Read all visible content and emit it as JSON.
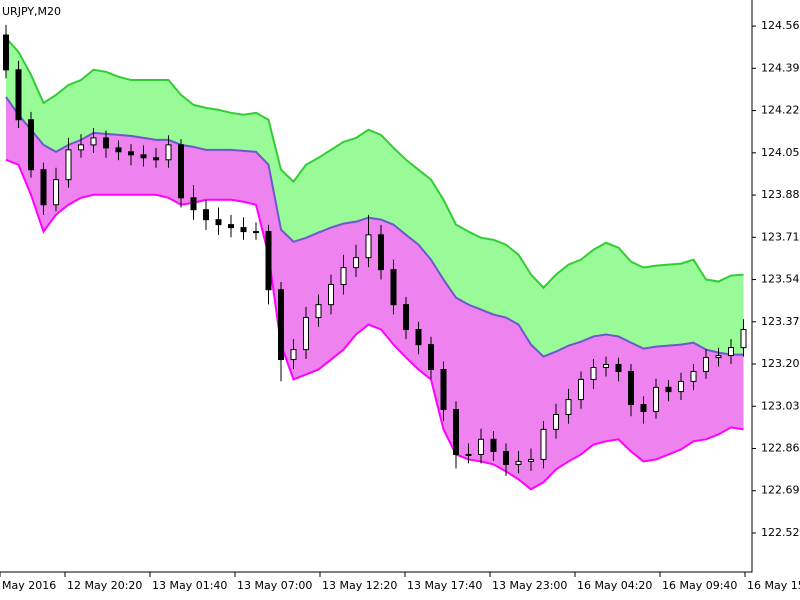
{
  "chart_data": {
    "type": "candlestick",
    "title": "URJPY,M20",
    "xlim": [
      -0.48,
      59.68
    ],
    "xticks": [
      {
        "value": -0.48,
        "label": "May 2016"
      },
      {
        "value": 4.72,
        "label": "12 May 20:20"
      },
      {
        "value": 11.52,
        "label": "13 May 01:40"
      },
      {
        "value": 18.32,
        "label": "13 May 07:00"
      },
      {
        "value": 25.12,
        "label": "13 May 12:20"
      },
      {
        "value": 31.92,
        "label": "13 May 17:40"
      },
      {
        "value": 38.72,
        "label": "13 May 23:00"
      },
      {
        "value": 45.52,
        "label": "16 May 04:20"
      },
      {
        "value": 52.32,
        "label": "16 May 09:40"
      },
      {
        "value": 59.12,
        "label": "16 May 15"
      }
    ],
    "ylim": [
      122.363,
      124.665
    ],
    "yticks": [
      {
        "value": 124.56,
        "label": "124.560"
      },
      {
        "value": 124.39,
        "label": "124.390"
      },
      {
        "value": 124.22,
        "label": "124.220"
      },
      {
        "value": 124.05,
        "label": "124.050"
      },
      {
        "value": 123.88,
        "label": "123.880"
      },
      {
        "value": 123.71,
        "label": "123.710"
      },
      {
        "value": 123.54,
        "label": "123.540"
      },
      {
        "value": 123.37,
        "label": "123.370"
      },
      {
        "value": 123.2,
        "label": "123.200"
      },
      {
        "value": 123.03,
        "label": "123.030"
      },
      {
        "value": 122.86,
        "label": "122.860"
      },
      {
        "value": 122.69,
        "label": "122.690"
      },
      {
        "value": 122.52,
        "label": "122.520"
      }
    ],
    "up_color": "#ffffff",
    "down_color": "#000000",
    "open": [
      124.524,
      124.384,
      124.183,
      123.982,
      123.841,
      123.942,
      124.062,
      124.082,
      124.11,
      124.07,
      124.054,
      124.042,
      124.03,
      124.022,
      124.082,
      123.869,
      123.821,
      123.781,
      123.761,
      123.749,
      123.733,
      123.733,
      123.499,
      123.218,
      123.258,
      123.387,
      123.439,
      123.52,
      123.588,
      123.628,
      123.72,
      123.58,
      123.439,
      123.339,
      123.278,
      123.178,
      123.017,
      122.836,
      122.836,
      122.897,
      122.848,
      122.796,
      122.808,
      122.816,
      122.937,
      122.997,
      123.057,
      123.138,
      123.186,
      123.198,
      123.17,
      123.037,
      123.009,
      123.106,
      123.089,
      123.13,
      123.17,
      123.226,
      123.234,
      123.266
    ],
    "high": [
      124.565,
      124.42,
      124.215,
      124.01,
      123.99,
      124.11,
      124.125,
      124.15,
      124.14,
      124.1,
      124.085,
      124.08,
      124.07,
      124.12,
      124.105,
      123.92,
      123.86,
      123.83,
      123.8,
      123.79,
      123.77,
      123.76,
      123.53,
      123.3,
      123.43,
      123.48,
      123.56,
      123.64,
      123.68,
      123.8,
      123.76,
      123.62,
      123.47,
      123.37,
      123.31,
      123.21,
      123.05,
      122.88,
      122.94,
      122.93,
      122.88,
      122.85,
      122.86,
      122.97,
      123.04,
      123.1,
      123.17,
      123.22,
      123.23,
      123.225,
      123.2,
      123.07,
      123.14,
      123.135,
      123.165,
      123.2,
      123.26,
      123.265,
      123.3,
      123.38
    ],
    "low": [
      124.35,
      124.15,
      123.95,
      123.8,
      123.815,
      123.91,
      124.03,
      124.05,
      124.03,
      124.02,
      124.0,
      123.995,
      123.99,
      123.99,
      123.83,
      123.78,
      123.74,
      123.72,
      123.71,
      123.7,
      123.7,
      123.44,
      123.13,
      123.18,
      123.22,
      123.35,
      123.4,
      123.48,
      123.55,
      123.59,
      123.54,
      123.4,
      123.3,
      123.24,
      123.14,
      122.97,
      122.78,
      122.8,
      122.8,
      122.81,
      122.75,
      122.76,
      122.77,
      122.78,
      122.9,
      122.96,
      123.02,
      123.1,
      123.15,
      123.13,
      122.99,
      122.96,
      122.98,
      123.05,
      123.055,
      123.095,
      123.14,
      123.19,
      123.2,
      123.23
    ],
    "close": [
      124.384,
      124.183,
      123.982,
      123.841,
      123.942,
      124.062,
      124.082,
      124.11,
      124.07,
      124.054,
      124.042,
      124.03,
      124.022,
      124.082,
      123.869,
      123.821,
      123.781,
      123.761,
      123.749,
      123.733,
      123.733,
      123.499,
      123.218,
      123.258,
      123.387,
      123.439,
      123.52,
      123.588,
      123.628,
      123.72,
      123.58,
      123.439,
      123.339,
      123.278,
      123.178,
      123.017,
      122.836,
      122.836,
      122.897,
      122.848,
      122.796,
      122.808,
      122.816,
      122.937,
      122.997,
      123.057,
      123.138,
      123.186,
      123.198,
      123.17,
      123.037,
      123.009,
      123.106,
      123.089,
      123.13,
      123.17,
      123.226,
      123.234,
      123.266,
      123.339
    ],
    "fills": [
      "#98fb98",
      "#ee82ee"
    ],
    "series": [
      {
        "color": "#32cd32",
        "values": [
          124.512,
          124.456,
          124.364,
          124.251,
          124.283,
          124.323,
          124.343,
          124.384,
          124.376,
          124.356,
          124.343,
          124.343,
          124.343,
          124.343,
          124.283,
          124.243,
          124.231,
          124.223,
          124.211,
          124.203,
          124.211,
          124.183,
          123.982,
          123.934,
          124.002,
          124.03,
          124.062,
          124.094,
          124.11,
          124.143,
          124.122,
          124.07,
          124.022,
          123.982,
          123.942,
          123.861,
          123.761,
          123.733,
          123.708,
          123.7,
          123.68,
          123.64,
          123.56,
          123.507,
          123.56,
          123.6,
          123.62,
          123.66,
          123.688,
          123.668,
          123.612,
          123.588,
          123.596,
          123.6,
          123.604,
          123.62,
          123.54,
          123.532,
          123.556,
          123.56
        ]
      },
      {
        "color": "#6a5acd",
        "values": [
          124.275,
          124.203,
          124.143,
          124.082,
          124.054,
          124.082,
          124.102,
          124.13,
          124.126,
          124.122,
          124.118,
          124.11,
          124.102,
          124.102,
          124.082,
          124.074,
          124.062,
          124.062,
          124.062,
          124.058,
          124.054,
          124.002,
          123.741,
          123.692,
          123.708,
          123.729,
          123.749,
          123.765,
          123.773,
          123.789,
          123.781,
          123.761,
          123.72,
          123.68,
          123.62,
          123.54,
          123.467,
          123.439,
          123.419,
          123.399,
          123.387,
          123.359,
          123.278,
          123.23,
          123.25,
          123.274,
          123.29,
          123.311,
          123.319,
          123.311,
          123.286,
          123.262,
          123.27,
          123.274,
          123.278,
          123.286,
          123.258,
          123.246,
          123.238,
          123.238
        ]
      },
      {
        "color": "#ff00ff",
        "values": [
          124.022,
          124.002,
          123.881,
          123.733,
          123.801,
          123.841,
          123.869,
          123.881,
          123.881,
          123.881,
          123.881,
          123.881,
          123.881,
          123.869,
          123.841,
          123.849,
          123.861,
          123.861,
          123.861,
          123.853,
          123.841,
          123.64,
          123.278,
          123.138,
          123.158,
          123.178,
          123.218,
          123.258,
          123.319,
          123.359,
          123.339,
          123.278,
          123.226,
          123.178,
          123.138,
          122.937,
          122.836,
          122.816,
          122.808,
          122.796,
          122.768,
          122.736,
          122.696,
          122.724,
          122.776,
          122.808,
          122.836,
          122.876,
          122.889,
          122.897,
          122.848,
          122.808,
          122.816,
          122.836,
          122.856,
          122.889,
          122.897,
          122.917,
          122.945,
          122.937
        ]
      }
    ]
  }
}
